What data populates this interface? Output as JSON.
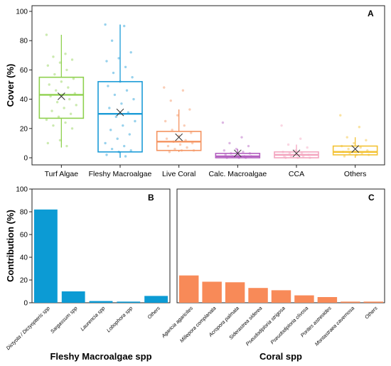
{
  "chart_data": [
    {
      "panel": "A",
      "type": "box",
      "ylabel": "Cover (%)",
      "ylim": [
        0,
        100
      ],
      "yticks": [
        0,
        20,
        40,
        60,
        80,
        100
      ],
      "categories": [
        "Turf Algae",
        "Fleshy Macroalgae",
        "Live Coral",
        "Calc. Macroalgae",
        "CCA",
        "Others"
      ],
      "colors": [
        "#8fd14f",
        "#1a9bd7",
        "#f4935f",
        "#b460c0",
        "#f3a5bf",
        "#f3c233"
      ],
      "boxes": [
        {
          "min": 7,
          "q1": 27,
          "median": 43,
          "q3": 55,
          "max": 84,
          "mean": 42
        },
        {
          "min": 0,
          "q1": 4,
          "median": 30,
          "q3": 52,
          "max": 91,
          "mean": 31
        },
        {
          "min": 4,
          "q1": 5,
          "median": 11,
          "q3": 18,
          "max": 33,
          "mean": 14
        },
        {
          "min": 0,
          "q1": 0,
          "median": 1,
          "q3": 3,
          "max": 6,
          "mean": 3
        },
        {
          "min": 0,
          "q1": 0,
          "median": 2,
          "q3": 4,
          "max": 9,
          "mean": 3
        },
        {
          "min": 0,
          "q1": 2,
          "median": 4,
          "q3": 8,
          "max": 14,
          "mean": 6
        }
      ],
      "points": [
        [
          84,
          71,
          69,
          67,
          65,
          63,
          60,
          57,
          54,
          52,
          50,
          48,
          46,
          44,
          43,
          42,
          40,
          38,
          36,
          34,
          32,
          30,
          28,
          26,
          24,
          22,
          20,
          12,
          10,
          8
        ],
        [
          91,
          90,
          80,
          72,
          68,
          66,
          62,
          58,
          55,
          52,
          49,
          46,
          43,
          40,
          37,
          34,
          31,
          28,
          25,
          22,
          19,
          16,
          13,
          10,
          8,
          6,
          5,
          4,
          2,
          1
        ],
        [
          48,
          46,
          39,
          33,
          29,
          25,
          22,
          19,
          17,
          15,
          13,
          12,
          11,
          10,
          9,
          8,
          7,
          6,
          5,
          5,
          4
        ],
        [
          24,
          14,
          10,
          8,
          6,
          5,
          4,
          3,
          3,
          2,
          2,
          1,
          1,
          1,
          0,
          0,
          0
        ],
        [
          22,
          13,
          9,
          7,
          5,
          4,
          3,
          3,
          2,
          2,
          1,
          1,
          1,
          0,
          0,
          0
        ],
        [
          29,
          21,
          14,
          12,
          10,
          8,
          7,
          6,
          5,
          4,
          4,
          3,
          3,
          2,
          2,
          1
        ]
      ]
    },
    {
      "panel": "B",
      "type": "bar",
      "ylabel": "Contribution (%)",
      "xlabel": "Fleshy Macroalgae spp",
      "ylim": [
        0,
        100
      ],
      "yticks": [
        0,
        20,
        40,
        60,
        80,
        100
      ],
      "color": "#0c9bd4",
      "categories": [
        "Dictyota / Dictyopteris spp",
        "Sargassum spp",
        "Laurencia spp",
        "Lobophora spp",
        "Others"
      ],
      "values": [
        82,
        10,
        1.5,
        1,
        6
      ]
    },
    {
      "panel": "C",
      "type": "bar",
      "xlabel": "Coral spp",
      "ylim": [
        0,
        100
      ],
      "color": "#f88a58",
      "categories": [
        "Agaricia agaricites",
        "Millepora complanata",
        "Acropora palmata",
        "Siderastrea siderea",
        "Pseudodiploria strigosa",
        "Pseudodiploria clivosa",
        "Porites astreoides",
        "Montastraea cavernosa",
        "Others"
      ],
      "values": [
        24,
        18.5,
        18,
        13,
        11,
        6.5,
        5,
        1,
        1
      ]
    }
  ]
}
